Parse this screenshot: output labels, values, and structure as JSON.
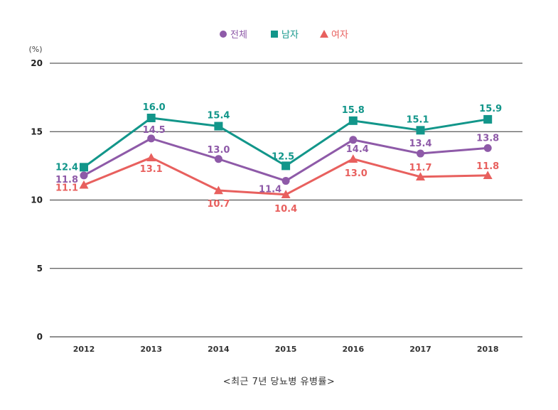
{
  "chart_data": {
    "type": "line",
    "unit_label": "(%)",
    "categories": [
      "2012",
      "2013",
      "2014",
      "2015",
      "2016",
      "2017",
      "2018"
    ],
    "ylim": [
      0,
      20
    ],
    "yticks": [
      0,
      5,
      10,
      15,
      20
    ],
    "grid": true,
    "legend_position": "top-center",
    "series": [
      {
        "name": "전체",
        "marker": "circle",
        "color": "#8e5aa8",
        "values": [
          11.8,
          14.5,
          13.0,
          11.4,
          14.4,
          13.4,
          13.8
        ]
      },
      {
        "name": "남자",
        "marker": "square",
        "color": "#12968a",
        "values": [
          12.4,
          16.0,
          15.4,
          12.5,
          15.8,
          15.1,
          15.9
        ]
      },
      {
        "name": "여자",
        "marker": "triangle",
        "color": "#e8605e",
        "values": [
          11.1,
          13.1,
          10.7,
          10.4,
          13.0,
          11.7,
          11.8
        ]
      }
    ]
  },
  "caption": "<최근 7년 당뇨병 유병률>"
}
